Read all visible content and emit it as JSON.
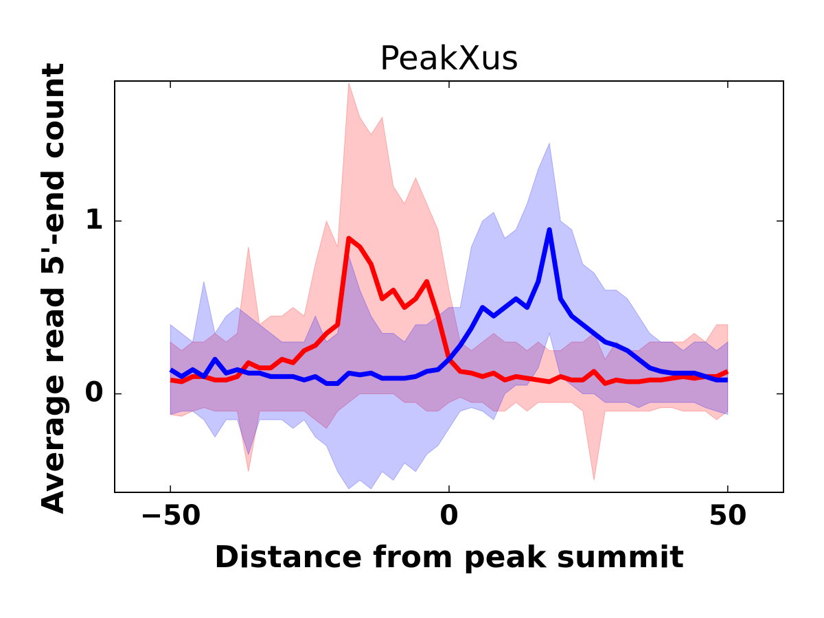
{
  "chart_data": {
    "type": "line",
    "title": "PeakXus",
    "x_label": "Distance from peak summit",
    "y_label": "Average read 5'-end count",
    "x": [
      -50,
      -48,
      -46,
      -44,
      -42,
      -40,
      -38,
      -36,
      -34,
      -32,
      -30,
      -28,
      -26,
      -24,
      -22,
      -20,
      -18,
      -16,
      -14,
      -12,
      -10,
      -8,
      -6,
      -4,
      -2,
      0,
      2,
      4,
      6,
      8,
      10,
      12,
      14,
      16,
      18,
      20,
      22,
      24,
      26,
      28,
      30,
      32,
      34,
      36,
      38,
      40,
      42,
      44,
      46,
      48,
      50
    ],
    "series": [
      {
        "color": "#ff0000",
        "values": [
          0.08,
          0.07,
          0.1,
          0.1,
          0.08,
          0.08,
          0.1,
          0.18,
          0.15,
          0.15,
          0.2,
          0.18,
          0.25,
          0.28,
          0.35,
          0.4,
          0.9,
          0.85,
          0.75,
          0.55,
          0.6,
          0.5,
          0.55,
          0.65,
          0.45,
          0.2,
          0.13,
          0.12,
          0.1,
          0.12,
          0.08,
          0.1,
          0.09,
          0.08,
          0.07,
          0.1,
          0.08,
          0.08,
          0.13,
          0.06,
          0.08,
          0.07,
          0.07,
          0.08,
          0.08,
          0.09,
          0.1,
          0.09,
          0.1,
          0.1,
          0.13
        ],
        "upper": [
          0.3,
          0.25,
          0.3,
          0.3,
          0.35,
          0.3,
          0.35,
          0.85,
          0.4,
          0.45,
          0.45,
          0.5,
          0.45,
          0.75,
          1.0,
          0.85,
          1.8,
          1.6,
          1.5,
          1.6,
          1.2,
          1.1,
          1.25,
          1.1,
          0.95,
          0.6,
          0.3,
          0.25,
          0.3,
          0.35,
          0.3,
          0.3,
          0.25,
          0.3,
          0.25,
          0.25,
          0.3,
          0.3,
          0.35,
          0.2,
          0.3,
          0.25,
          0.25,
          0.3,
          0.3,
          0.3,
          0.3,
          0.35,
          0.3,
          0.4,
          0.4
        ],
        "lower": [
          -0.12,
          -0.13,
          -0.1,
          -0.08,
          -0.1,
          -0.1,
          -0.1,
          -0.45,
          -0.1,
          -0.1,
          -0.1,
          -0.1,
          -0.1,
          -0.15,
          -0.2,
          -0.1,
          -0.05,
          0.0,
          0.0,
          0.0,
          0.0,
          -0.05,
          -0.05,
          -0.1,
          -0.1,
          -0.05,
          -0.02,
          -0.05,
          -0.05,
          -0.1,
          -0.1,
          -0.05,
          -0.1,
          -0.05,
          -0.05,
          -0.05,
          -0.05,
          -0.1,
          -0.5,
          -0.1,
          -0.1,
          -0.1,
          -0.1,
          -0.1,
          -0.08,
          -0.08,
          -0.1,
          -0.1,
          -0.1,
          -0.15,
          -0.1
        ]
      },
      {
        "color": "#0000ff",
        "values": [
          0.14,
          0.1,
          0.14,
          0.1,
          0.2,
          0.12,
          0.14,
          0.12,
          0.12,
          0.1,
          0.1,
          0.1,
          0.08,
          0.1,
          0.06,
          0.06,
          0.12,
          0.11,
          0.12,
          0.09,
          0.09,
          0.09,
          0.1,
          0.13,
          0.14,
          0.2,
          0.28,
          0.38,
          0.5,
          0.45,
          0.5,
          0.55,
          0.5,
          0.65,
          0.95,
          0.55,
          0.45,
          0.4,
          0.35,
          0.3,
          0.28,
          0.25,
          0.2,
          0.15,
          0.13,
          0.12,
          0.12,
          0.12,
          0.1,
          0.08,
          0.08
        ],
        "upper": [
          0.4,
          0.35,
          0.3,
          0.65,
          0.35,
          0.45,
          0.5,
          0.45,
          0.4,
          0.35,
          0.3,
          0.3,
          0.3,
          0.45,
          0.3,
          0.35,
          0.8,
          0.6,
          0.45,
          0.35,
          0.35,
          0.3,
          0.4,
          0.4,
          0.45,
          0.5,
          0.5,
          0.85,
          1.0,
          1.05,
          0.9,
          0.95,
          1.1,
          1.3,
          1.45,
          1.0,
          0.95,
          0.75,
          0.7,
          0.6,
          0.6,
          0.55,
          0.45,
          0.35,
          0.3,
          0.3,
          0.25,
          0.3,
          0.3,
          0.25,
          0.3
        ],
        "lower": [
          -0.12,
          -0.1,
          -0.1,
          -0.15,
          -0.25,
          -0.15,
          -0.15,
          -0.35,
          -0.15,
          -0.15,
          -0.15,
          -0.2,
          -0.15,
          -0.25,
          -0.3,
          -0.45,
          -0.55,
          -0.5,
          -0.55,
          -0.45,
          -0.5,
          -0.4,
          -0.45,
          -0.35,
          -0.3,
          -0.2,
          -0.1,
          -0.08,
          -0.1,
          -0.15,
          0.0,
          0.05,
          0.05,
          0.15,
          0.35,
          0.1,
          0.05,
          0.0,
          0.0,
          -0.05,
          -0.05,
          -0.05,
          -0.08,
          -0.05,
          -0.05,
          -0.05,
          -0.05,
          -0.05,
          -0.08,
          -0.1,
          -0.12
        ]
      }
    ],
    "xlim": [
      -60,
      60
    ],
    "ylim": [
      -0.57,
      1.81
    ],
    "xticks": [
      {
        "value": -50,
        "label": "−50"
      },
      0,
      50
    ],
    "yticks": [
      0,
      1
    ]
  }
}
